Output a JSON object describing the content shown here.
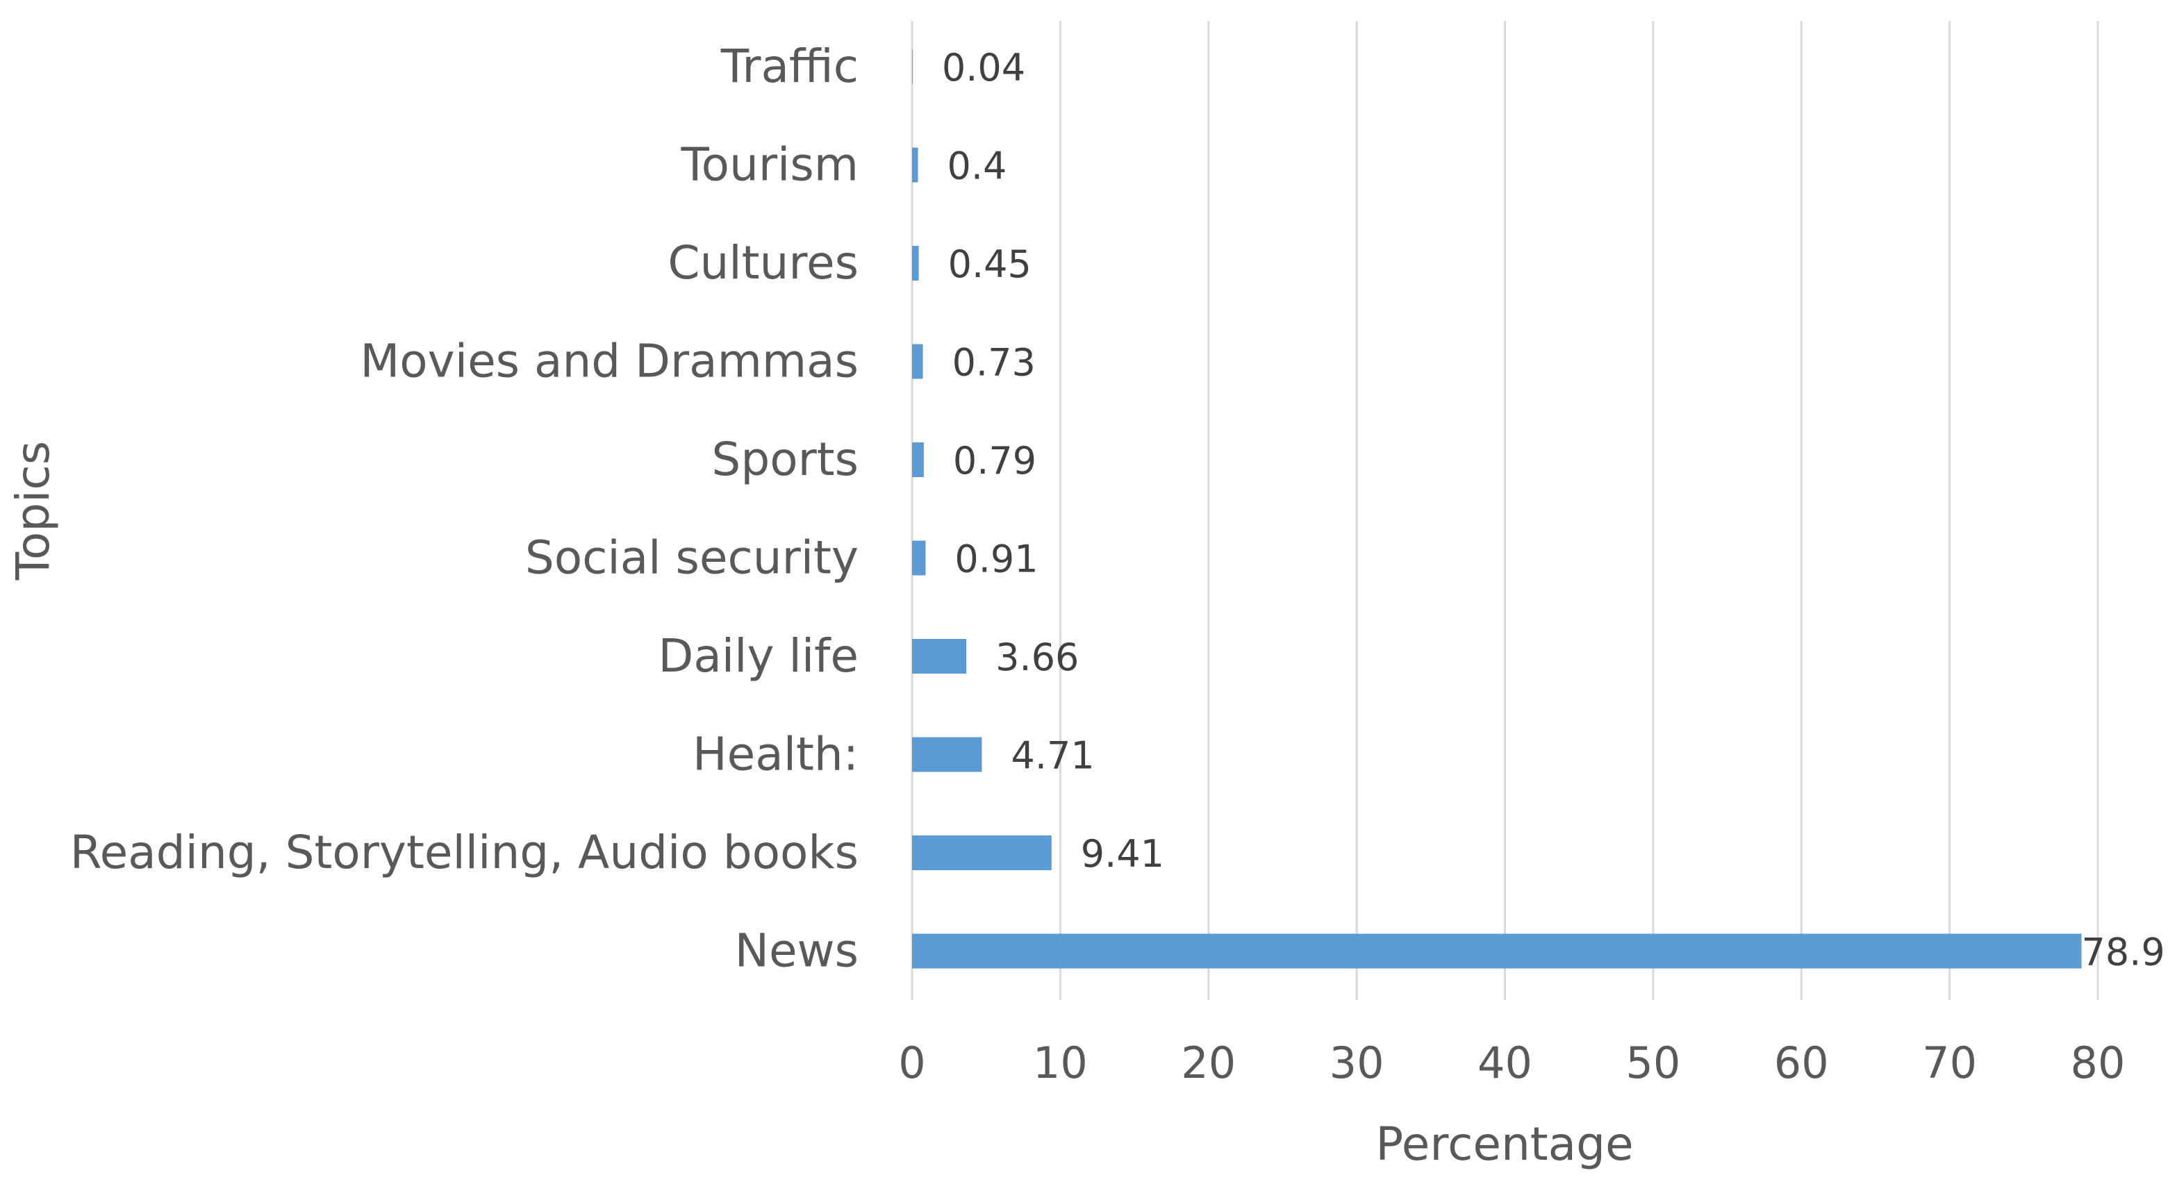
{
  "chart_data": {
    "type": "bar",
    "orientation": "horizontal",
    "title": "",
    "xlabel": "Percentage",
    "ylabel": "Topics",
    "xlim": [
      0,
      80
    ],
    "x_ticks": [
      "0",
      "10",
      "20",
      "30",
      "40",
      "50",
      "60",
      "70",
      "80"
    ],
    "grid": true,
    "bar_color": "#5b9bd5",
    "categories": [
      "Traffic",
      "Tourism",
      "Cultures",
      "Movies and Drammas",
      "Sports",
      "Social security",
      "Daily life",
      "Health:",
      "Reading, Storytelling, Audio books",
      "News"
    ],
    "values": [
      0.04,
      0.4,
      0.45,
      0.73,
      0.79,
      0.91,
      3.66,
      4.71,
      9.41,
      78.9
    ],
    "value_labels": [
      "0.04",
      "0.4",
      "0.45",
      "0.73",
      "0.79",
      "0.91",
      "3.66",
      "4.71",
      "9.41",
      "78.9"
    ]
  }
}
